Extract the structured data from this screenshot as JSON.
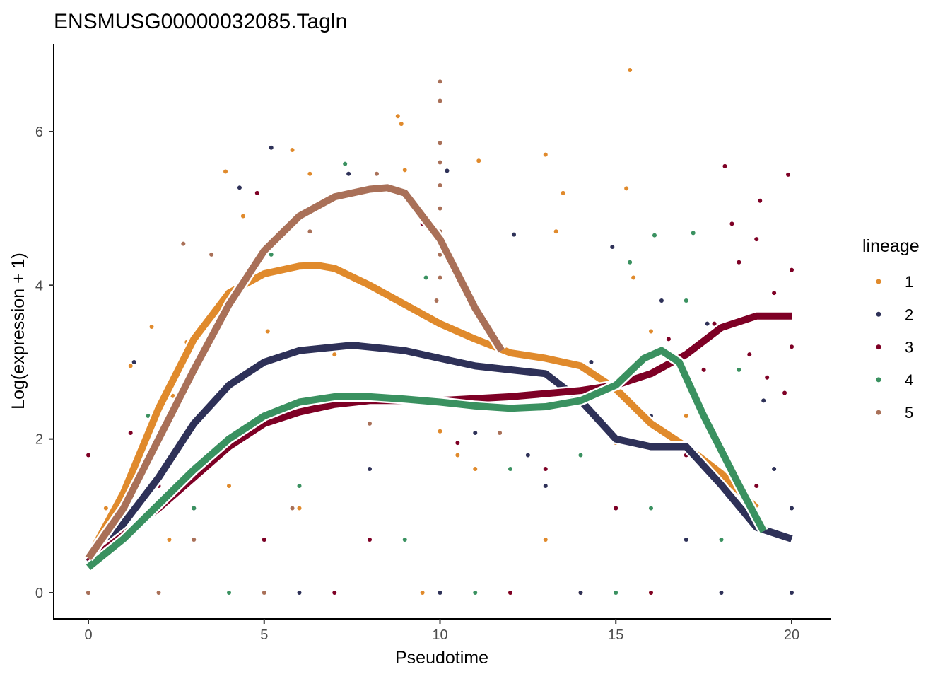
{
  "chart_data": {
    "type": "scatter",
    "title": "ENSMUSG00000032085.Tagln",
    "xlabel": "Pseudotime",
    "ylabel": "Log(expression + 1)",
    "xlim": [
      -1,
      21
    ],
    "ylim": [
      -0.35,
      7.15
    ],
    "xticks": [
      0,
      5,
      10,
      15,
      20
    ],
    "yticks": [
      0,
      2,
      4,
      6
    ],
    "grid": false,
    "legend_position": "right",
    "legend_title": "lineage",
    "series": [
      {
        "name": "1",
        "color": "#E08A2C",
        "smooth": [
          [
            0,
            0.45
          ],
          [
            1,
            1.3
          ],
          [
            2,
            2.4
          ],
          [
            3,
            3.3
          ],
          [
            4,
            3.9
          ],
          [
            5,
            4.15
          ],
          [
            6,
            4.25
          ],
          [
            6.5,
            4.26
          ],
          [
            7,
            4.22
          ],
          [
            8,
            4.0
          ],
          [
            9,
            3.75
          ],
          [
            10,
            3.5
          ],
          [
            11,
            3.3
          ],
          [
            12,
            3.12
          ],
          [
            13,
            3.05
          ],
          [
            14,
            2.95
          ],
          [
            15,
            2.65
          ],
          [
            16,
            2.2
          ],
          [
            17,
            1.9
          ],
          [
            18,
            1.55
          ],
          [
            19,
            1.1
          ]
        ],
        "points": [
          [
            0,
            0
          ],
          [
            0.5,
            1.1
          ],
          [
            1.2,
            2.95
          ],
          [
            1.8,
            3.46
          ],
          [
            2.4,
            2.56
          ],
          [
            2.8,
            3.26
          ],
          [
            3.9,
            5.48
          ],
          [
            4.4,
            4.9
          ],
          [
            5.1,
            3.4
          ],
          [
            5.8,
            5.76
          ],
          [
            6.3,
            5.45
          ],
          [
            7.0,
            3.1
          ],
          [
            8.8,
            6.2
          ],
          [
            8.9,
            6.1
          ],
          [
            9.0,
            5.5
          ],
          [
            10.0,
            2.1
          ],
          [
            11.1,
            5.62
          ],
          [
            13.0,
            5.7
          ],
          [
            13.5,
            5.2
          ],
          [
            13.3,
            4.7
          ],
          [
            15.3,
            5.26
          ],
          [
            15.4,
            6.8
          ],
          [
            15.5,
            4.1
          ],
          [
            16,
            3.4
          ],
          [
            17,
            2.3
          ],
          [
            18,
            1.9
          ],
          [
            2.3,
            0.69
          ],
          [
            4,
            1.39
          ],
          [
            6,
            1.1
          ],
          [
            10.5,
            1.79
          ],
          [
            12,
            0
          ],
          [
            14,
            0
          ],
          [
            16,
            0
          ],
          [
            18.5,
            1.1
          ],
          [
            9.5,
            0
          ],
          [
            11,
            1.61
          ],
          [
            13,
            0.69
          ],
          [
            15,
            1.95
          ]
        ]
      },
      {
        "name": "2",
        "color": "#2E3158",
        "smooth": [
          [
            0,
            0.4
          ],
          [
            1,
            0.9
          ],
          [
            2,
            1.5
          ],
          [
            3,
            2.2
          ],
          [
            4,
            2.7
          ],
          [
            5,
            3.0
          ],
          [
            6,
            3.15
          ],
          [
            7.5,
            3.22
          ],
          [
            9,
            3.15
          ],
          [
            10,
            3.05
          ],
          [
            11,
            2.95
          ],
          [
            12,
            2.9
          ],
          [
            13,
            2.85
          ],
          [
            14,
            2.5
          ],
          [
            15,
            2.0
          ],
          [
            16,
            1.9
          ],
          [
            17,
            1.9
          ],
          [
            18,
            1.4
          ],
          [
            19,
            0.85
          ],
          [
            20,
            0.7
          ]
        ],
        "points": [
          [
            0,
            0
          ],
          [
            1.3,
            3.0
          ],
          [
            4.3,
            5.27
          ],
          [
            5.2,
            5.79
          ],
          [
            7.4,
            5.45
          ],
          [
            10.2,
            5.49
          ],
          [
            12.1,
            4.66
          ],
          [
            14.3,
            3.0
          ],
          [
            14.9,
            4.5
          ],
          [
            16.3,
            3.8
          ],
          [
            17.6,
            3.5
          ],
          [
            19.2,
            2.5
          ],
          [
            3,
            1.1
          ],
          [
            5,
            0.69
          ],
          [
            8,
            1.61
          ],
          [
            11,
            2.08
          ],
          [
            13,
            1.39
          ],
          [
            15,
            1.1
          ],
          [
            17,
            0.69
          ],
          [
            20,
            1.1
          ],
          [
            20,
            0
          ],
          [
            6,
            0
          ],
          [
            10,
            0
          ],
          [
            14,
            0
          ],
          [
            18,
            0
          ],
          [
            19.5,
            1.61
          ],
          [
            12.5,
            1.79
          ],
          [
            16,
            2.3
          ]
        ]
      },
      {
        "name": "3",
        "color": "#7E0025",
        "smooth": [
          [
            0,
            0.4
          ],
          [
            1,
            0.75
          ],
          [
            2,
            1.1
          ],
          [
            3,
            1.5
          ],
          [
            4,
            1.9
          ],
          [
            5,
            2.2
          ],
          [
            6,
            2.35
          ],
          [
            7,
            2.45
          ],
          [
            8,
            2.5
          ],
          [
            10,
            2.5
          ],
          [
            12,
            2.55
          ],
          [
            14,
            2.63
          ],
          [
            15,
            2.7
          ],
          [
            16,
            2.85
          ],
          [
            17,
            3.1
          ],
          [
            18,
            3.45
          ],
          [
            19,
            3.6
          ],
          [
            20,
            3.6
          ]
        ],
        "points": [
          [
            0,
            1.79
          ],
          [
            1.2,
            2.08
          ],
          [
            4.8,
            5.2
          ],
          [
            9.5,
            4.8
          ],
          [
            18.1,
            5.55
          ],
          [
            19.1,
            5.1
          ],
          [
            19.9,
            5.44
          ],
          [
            18.5,
            4.3
          ],
          [
            19,
            4.6
          ],
          [
            19.5,
            3.9
          ],
          [
            18.8,
            3.1
          ],
          [
            20,
            4.2
          ],
          [
            17.8,
            3.5
          ],
          [
            19.3,
            2.8
          ],
          [
            20,
            3.2
          ],
          [
            18.3,
            4.8
          ],
          [
            19.8,
            2.6
          ],
          [
            17.5,
            2.9
          ],
          [
            16.5,
            3.3
          ],
          [
            2,
            1.39
          ],
          [
            5,
            0.69
          ],
          [
            8,
            0.69
          ],
          [
            10.5,
            1.95
          ],
          [
            13,
            1.61
          ],
          [
            15,
            1.1
          ],
          [
            17,
            1.79
          ],
          [
            19,
            1.39
          ],
          [
            7,
            0
          ],
          [
            12,
            0
          ],
          [
            16,
            0
          ]
        ]
      },
      {
        "name": "4",
        "color": "#3A9160",
        "smooth": [
          [
            0,
            0.33
          ],
          [
            1,
            0.7
          ],
          [
            2,
            1.15
          ],
          [
            3,
            1.6
          ],
          [
            4,
            2.0
          ],
          [
            5,
            2.3
          ],
          [
            6,
            2.48
          ],
          [
            7,
            2.55
          ],
          [
            8,
            2.55
          ],
          [
            9,
            2.52
          ],
          [
            10,
            2.48
          ],
          [
            11,
            2.43
          ],
          [
            12,
            2.4
          ],
          [
            13,
            2.42
          ],
          [
            14,
            2.5
          ],
          [
            15,
            2.7
          ],
          [
            15.8,
            3.05
          ],
          [
            16.3,
            3.15
          ],
          [
            16.8,
            3.0
          ],
          [
            17.5,
            2.3
          ],
          [
            18.5,
            1.4
          ],
          [
            19.2,
            0.8
          ]
        ],
        "points": [
          [
            1.7,
            2.3
          ],
          [
            5.2,
            4.4
          ],
          [
            7.3,
            5.58
          ],
          [
            9.6,
            4.1
          ],
          [
            11.1,
            3.6
          ],
          [
            15.4,
            4.3
          ],
          [
            16.1,
            4.65
          ],
          [
            17.2,
            4.68
          ],
          [
            17,
            3.8
          ],
          [
            18.5,
            2.9
          ],
          [
            3,
            1.1
          ],
          [
            6,
            1.39
          ],
          [
            9,
            0.69
          ],
          [
            12,
            1.61
          ],
          [
            14,
            1.79
          ],
          [
            16,
            1.1
          ],
          [
            18,
            0.69
          ],
          [
            4,
            0
          ],
          [
            11,
            0
          ],
          [
            15,
            0
          ]
        ]
      },
      {
        "name": "5",
        "color": "#A97058",
        "smooth": [
          [
            0,
            0.45
          ],
          [
            1,
            1.1
          ],
          [
            2,
            2.0
          ],
          [
            3,
            2.9
          ],
          [
            4,
            3.75
          ],
          [
            5,
            4.45
          ],
          [
            6,
            4.9
          ],
          [
            7,
            5.15
          ],
          [
            8,
            5.25
          ],
          [
            8.5,
            5.27
          ],
          [
            9,
            5.2
          ],
          [
            10,
            4.6
          ],
          [
            11,
            3.7
          ],
          [
            11.75,
            3.15
          ]
        ],
        "points": [
          [
            2.7,
            4.54
          ],
          [
            3.5,
            4.4
          ],
          [
            4.2,
            4.0
          ],
          [
            6.3,
            4.7
          ],
          [
            8.2,
            5.45
          ],
          [
            10,
            6.65
          ],
          [
            10,
            6.4
          ],
          [
            10,
            5.85
          ],
          [
            10,
            5.6
          ],
          [
            10,
            5.3
          ],
          [
            10,
            5.0
          ],
          [
            10,
            4.7
          ],
          [
            10,
            4.4
          ],
          [
            10,
            4.1
          ],
          [
            9.9,
            3.8
          ],
          [
            11.7,
            2.08
          ],
          [
            1,
            1.39
          ],
          [
            3,
            0.69
          ],
          [
            5.8,
            1.1
          ],
          [
            8,
            2.2
          ],
          [
            0,
            0
          ],
          [
            2,
            0
          ],
          [
            5,
            0
          ]
        ]
      }
    ]
  }
}
